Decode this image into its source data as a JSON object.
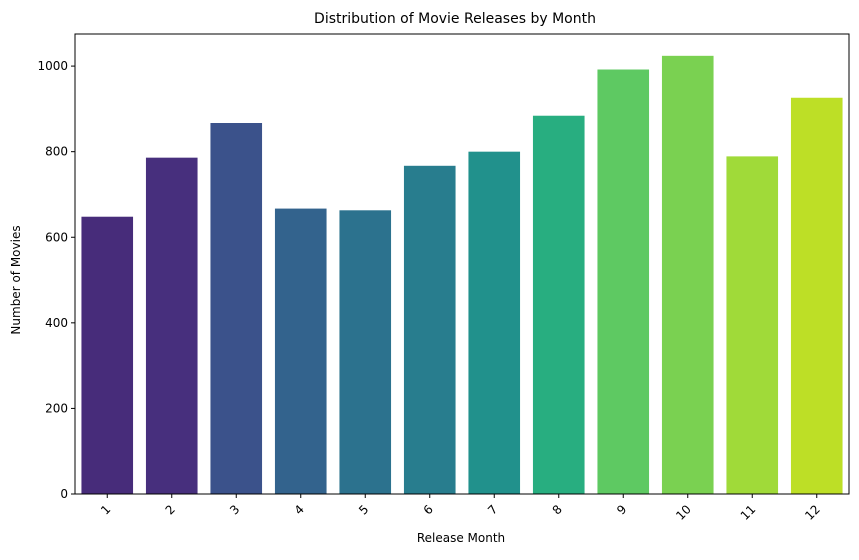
{
  "chart_data": {
    "type": "bar",
    "title": "Distribution of Movie Releases by Month",
    "xlabel": "Release Month",
    "ylabel": "Number of Movies",
    "categories": [
      "1",
      "2",
      "3",
      "4",
      "5",
      "6",
      "7",
      "8",
      "9",
      "10",
      "11",
      "12"
    ],
    "values": [
      648,
      786,
      867,
      667,
      663,
      767,
      800,
      884,
      992,
      1024,
      789,
      926
    ],
    "ylim": [
      0,
      1075
    ],
    "yticks": [
      0,
      200,
      400,
      600,
      800,
      1000
    ],
    "xtick_rotation": 45,
    "grid": false,
    "legend": "none",
    "colors": [
      "#472c7a",
      "#472f7d",
      "#3b528b",
      "#33638d",
      "#2c728e",
      "#287d8e",
      "#21918c",
      "#28ae80",
      "#5ec962",
      "#7ad151",
      "#a0da39",
      "#bddf26"
    ],
    "palette": "viridis"
  }
}
